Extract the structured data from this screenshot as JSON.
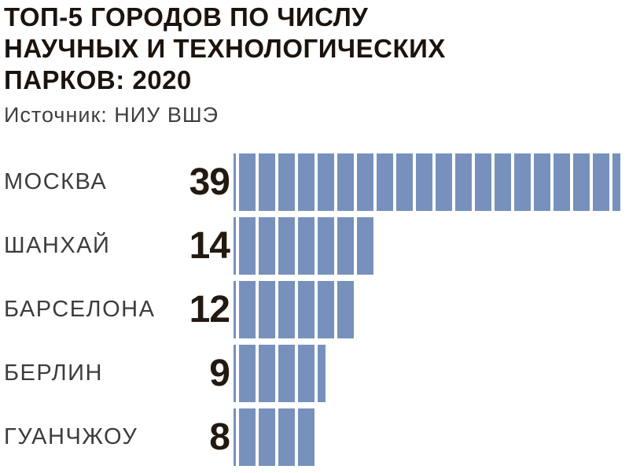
{
  "header": {
    "title_lines": [
      "ТОП-5 ГОРОДОВ ПО ЧИСЛУ",
      "НАУЧНЫХ И ТЕХНОЛОГИЧЕСКИХ",
      "ПАРКОВ: 2020"
    ],
    "source": "Источник: НИУ ВШЭ"
  },
  "colors": {
    "bar": "#7791BC",
    "title": "#1C130D",
    "city_label": "#3C3C3C",
    "value_label": "#231911",
    "background": "#FFFFFF"
  },
  "chart_data": {
    "type": "bar",
    "orientation": "horizontal",
    "title": "ТОП-5 ГОРОДОВ ПО ЧИСЛУ НАУЧНЫХ И ТЕХНОЛОГИЧЕСКИХ ПАРКОВ: 2020",
    "source": "НИУ ВШЭ",
    "categories": [
      "МОСКВА",
      "ШАНХАЙ",
      "БАРСЕЛОНА",
      "БЕРЛИН",
      "ГУАНЧЖОУ"
    ],
    "values": [
      39,
      14,
      12,
      9,
      8
    ],
    "units_per_segment": 2,
    "xlim": [
      0,
      40
    ],
    "grid": false,
    "legend": false,
    "value_labels_shown": true
  }
}
